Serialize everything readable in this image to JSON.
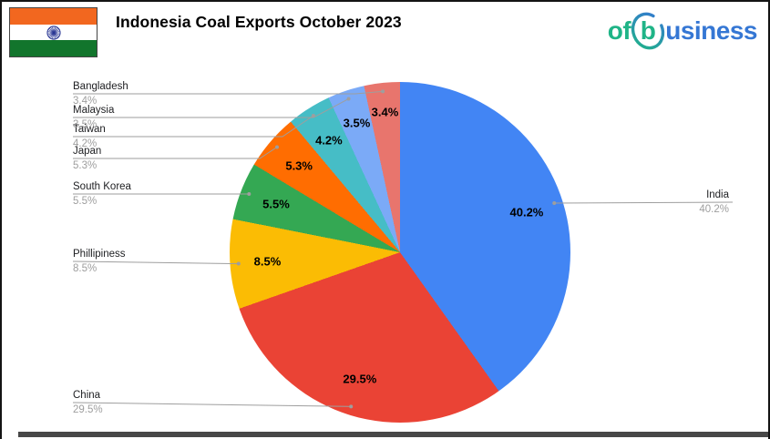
{
  "header": {
    "title": "Indonesia Coal Exports October 2023",
    "logo": {
      "prefix": "of",
      "b": "b",
      "suffix": "usiness",
      "teal": "#1fb487",
      "blue": "#3577d4"
    },
    "flag": {
      "saffron": "#F2671F",
      "white": "#FFFFFF",
      "green": "#12752C",
      "chakra": "#283593"
    }
  },
  "chart_data": {
    "type": "pie",
    "title": "Indonesia Coal Exports October 2023",
    "legend_position": "outside-labels",
    "slices": [
      {
        "label": "India",
        "value": 40.2,
        "pct_label": "40.2%",
        "color": "#4285F4"
      },
      {
        "label": "China",
        "value": 29.5,
        "pct_label": "29.5%",
        "color": "#EA4335"
      },
      {
        "label": "Phillipiness",
        "value": 8.5,
        "pct_label": "8.5%",
        "color": "#FBBC04"
      },
      {
        "label": "South Korea",
        "value": 5.5,
        "pct_label": "5.5%",
        "color": "#34A853"
      },
      {
        "label": "Japan",
        "value": 5.3,
        "pct_label": "5.3%",
        "color": "#FF6D01"
      },
      {
        "label": "Taiwan",
        "value": 4.2,
        "pct_label": "4.2%",
        "color": "#46BDC6"
      },
      {
        "label": "Malaysia",
        "value": 3.5,
        "pct_label": "3.5%",
        "color": "#7BAAF7"
      },
      {
        "label": "Bangladesh",
        "value": 3.4,
        "pct_label": "3.4%",
        "color": "#E8756D"
      }
    ]
  }
}
